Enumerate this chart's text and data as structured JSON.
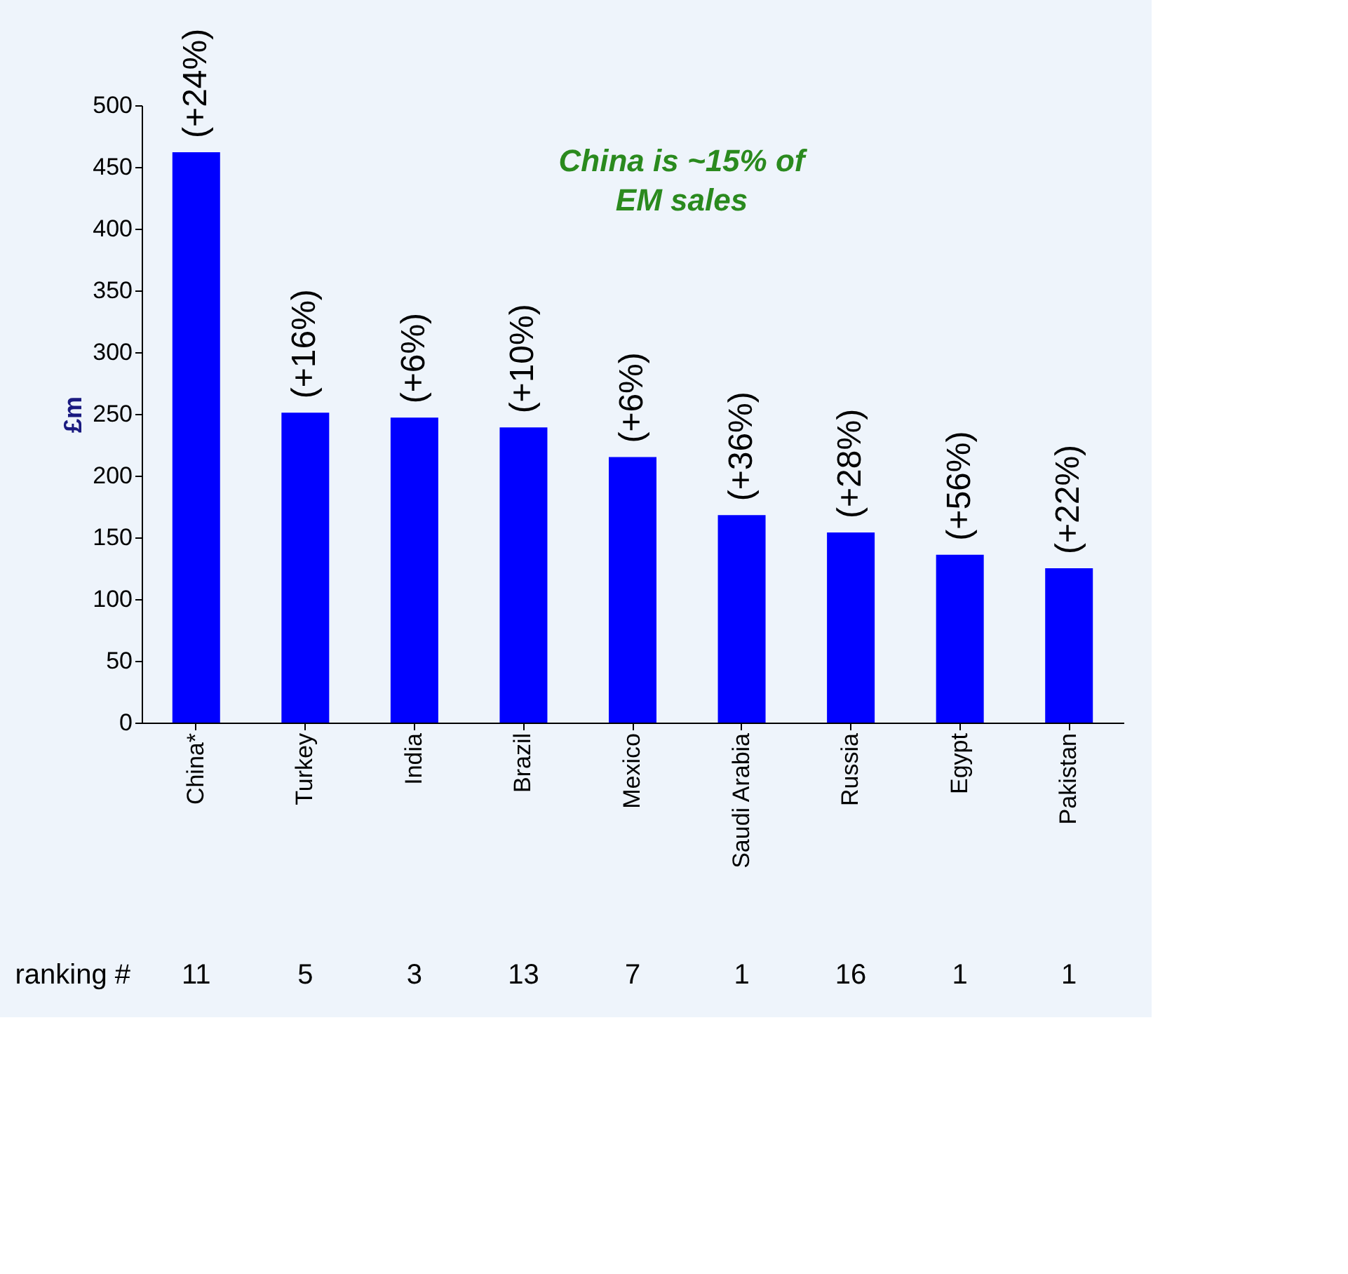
{
  "chart_data": {
    "type": "bar",
    "ylabel": "£m",
    "categories": [
      "China*",
      "Turkey",
      "India",
      "Brazil",
      "Mexico",
      "Saudi Arabia",
      "Russia",
      "Egypt",
      "Pakistan"
    ],
    "values": [
      462,
      251,
      247,
      239,
      215,
      168,
      154,
      136,
      125
    ],
    "color": "#0000ff",
    "ylim": [
      0,
      500
    ],
    "yticks": [
      0,
      50,
      100,
      150,
      200,
      250,
      300,
      350,
      400,
      450,
      500
    ],
    "grid": false,
    "annotations": [
      "China is ~15% of EM sales",
      "ranking #",
      "11",
      "5",
      "3",
      "13",
      "7",
      "1",
      "16",
      "1",
      "1",
      {
        "text": "(+24%)",
        "x": "China*",
        "y": 462
      },
      {
        "text": "(+16%)",
        "x": "Turkey",
        "y": 251
      },
      {
        "text": "(+6%)",
        "x": "India",
        "y": 247
      },
      {
        "text": "(+10%)",
        "x": "Brazil",
        "y": 239
      },
      {
        "text": "(+6%)",
        "x": "Mexico",
        "y": 215
      },
      {
        "text": "(+36%)",
        "x": "Saudi Arabia",
        "y": 168
      },
      {
        "text": "(+28%)",
        "x": "Russia",
        "y": 154
      },
      {
        "text": "(+56%)",
        "x": "Egypt",
        "y": 136
      },
      {
        "text": "(+22%)",
        "x": "Pakistan",
        "y": 125
      }
    ]
  }
}
